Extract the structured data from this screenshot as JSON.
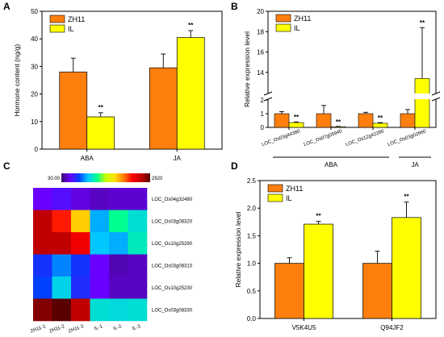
{
  "colors": {
    "zh11": "#ff7f0e",
    "il": "#ffff00",
    "axis": "#000000"
  },
  "panels": {
    "A": {
      "letter": "A",
      "ylabel": "Hormone content (ng/g)",
      "legend": [
        "ZH11",
        "IL"
      ],
      "chart_data": {
        "type": "bar",
        "categories": [
          "ABA",
          "JA"
        ],
        "series": [
          {
            "name": "ZH11",
            "values": [
              28,
              29.5
            ],
            "errors": [
              5,
              5
            ]
          },
          {
            "name": "IL",
            "values": [
              11.7,
              40.5
            ],
            "errors": [
              1.5,
              2.5
            ]
          }
        ],
        "significance": [
          [
            "",
            "**"
          ],
          [
            "",
            "**"
          ]
        ],
        "ylim": [
          0,
          50
        ],
        "yticks": [
          "0",
          "10",
          "20",
          "30",
          "40",
          "50"
        ]
      }
    },
    "B": {
      "letter": "B",
      "ylabel": "Relative expression level",
      "legend": [
        "ZH11",
        "IL"
      ],
      "chart_data": {
        "type": "bar",
        "broken_axis": {
          "lower": [
            0,
            2
          ],
          "upper": [
            12,
            20
          ]
        },
        "categories": [
          "LOC_Os03g44380",
          "LOC_Os07g05940",
          "LOC_Os12g42280",
          "LOC_Os03g02860"
        ],
        "series": [
          {
            "name": "ZH11",
            "values": [
              1.0,
              1.0,
              1.0,
              1.0
            ],
            "errors": [
              0.15,
              0.6,
              0.1,
              0.3
            ]
          },
          {
            "name": "IL",
            "values": [
              0.35,
              0.05,
              0.3,
              13.4
            ],
            "errors": [
              0.05,
              0.02,
              0.05,
              5.0
            ]
          }
        ],
        "significance": [
          "**",
          "**",
          "**",
          "**"
        ],
        "yticks_lower": [
          "0",
          "1",
          "2"
        ],
        "yticks_upper": [
          "14",
          "16",
          "18",
          "20"
        ],
        "groups": [
          {
            "label": "ABA",
            "span": [
              0,
              2
            ]
          },
          {
            "label": "JA",
            "span": [
              3,
              3
            ]
          }
        ]
      }
    },
    "C": {
      "letter": "C",
      "colorbar_min": "30.00",
      "colorbar_max": "2920",
      "chart_data": {
        "type": "heatmap",
        "columns": [
          "ZH11-1",
          "ZH11-2",
          "ZH11-3",
          "IL-1",
          "IL-2",
          "IL-3"
        ],
        "rows": [
          "LOC_Os04g32480",
          "LOC_Os03g08320",
          "LOC_Os10g25290",
          "LOC_Os03g08310",
          "LOC_Os10g25230",
          "LOC_Os03g08330"
        ],
        "values": [
          [
            0.1,
            0.12,
            0.08,
            0.06,
            0.07,
            0.07
          ],
          [
            0.9,
            0.78,
            0.62,
            0.28,
            0.4,
            0.34
          ],
          [
            0.9,
            0.9,
            0.82,
            0.3,
            0.28,
            0.36
          ],
          [
            0.18,
            0.25,
            0.18,
            0.1,
            0.05,
            0.06
          ],
          [
            0.2,
            0.32,
            0.17,
            0.1,
            0.06,
            0.06
          ],
          [
            0.96,
            1.0,
            0.9,
            0.34,
            0.33,
            0.34
          ]
        ]
      }
    },
    "D": {
      "letter": "D",
      "ylabel": "Relative expression level",
      "legend": [
        "ZH11",
        "IL"
      ],
      "chart_data": {
        "type": "bar",
        "categories": [
          "V5K4U5",
          "Q94JF2"
        ],
        "series": [
          {
            "name": "ZH11",
            "values": [
              1.0,
              1.0
            ],
            "errors": [
              0.1,
              0.22
            ]
          },
          {
            "name": "IL",
            "values": [
              1.71,
              1.83
            ],
            "errors": [
              0.05,
              0.28
            ]
          }
        ],
        "significance": [
          [
            "",
            "**"
          ],
          [
            "",
            "**"
          ]
        ],
        "ylim": [
          0,
          2.5
        ],
        "yticks": [
          "0.0",
          "0.5",
          "1.0",
          "1.5",
          "2.0",
          "2.5"
        ]
      }
    }
  }
}
